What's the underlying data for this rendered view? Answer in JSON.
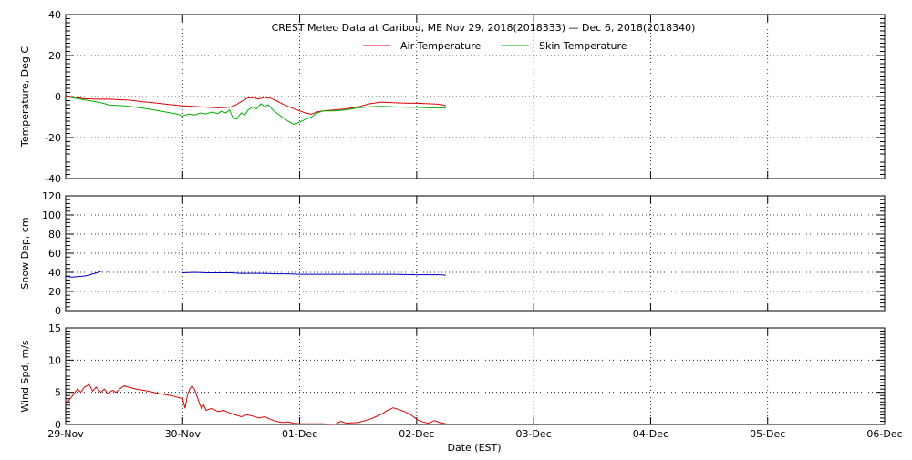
{
  "chart_data": [
    {
      "type": "line",
      "title": "CREST Meteo Data at Caribou, ME    Nov 29, 2018(2018333) — Dec  6, 2018(2018340)",
      "ylabel": "Temperature, Deg C",
      "ylim": [
        -40,
        40
      ],
      "yticks": [
        -40,
        -20,
        0,
        20,
        40
      ],
      "xlim": [
        0,
        7
      ],
      "grid": true,
      "legend_position": "top",
      "series": [
        {
          "name": "Air Temperature",
          "color": "#e00000",
          "points": [
            [
              0,
              0.5
            ],
            [
              0.08,
              -0.3
            ],
            [
              0.15,
              -1.0
            ],
            [
              0.25,
              -1.3
            ],
            [
              0.35,
              -1.2
            ],
            [
              0.45,
              -1.5
            ],
            [
              0.55,
              -1.8
            ],
            [
              0.65,
              -2.5
            ],
            [
              0.75,
              -3.0
            ],
            [
              0.9,
              -4.0
            ],
            [
              1.0,
              -4.5
            ],
            [
              1.15,
              -5.0
            ],
            [
              1.3,
              -5.5
            ],
            [
              1.4,
              -5.2
            ],
            [
              1.45,
              -4.2
            ],
            [
              1.5,
              -2.5
            ],
            [
              1.55,
              -0.8
            ],
            [
              1.6,
              -0.5
            ],
            [
              1.65,
              -1.2
            ],
            [
              1.7,
              -0.4
            ],
            [
              1.75,
              -0.8
            ],
            [
              1.8,
              -2.0
            ],
            [
              1.85,
              -3.5
            ],
            [
              1.9,
              -4.8
            ],
            [
              2.0,
              -7.0
            ],
            [
              2.05,
              -8.0
            ],
            [
              2.1,
              -8.6
            ],
            [
              2.15,
              -7.5
            ],
            [
              2.2,
              -7.0
            ],
            [
              2.3,
              -6.5
            ],
            [
              2.4,
              -6.0
            ],
            [
              2.5,
              -5.0
            ],
            [
              2.6,
              -3.5
            ],
            [
              2.7,
              -2.7
            ],
            [
              2.8,
              -3.0
            ],
            [
              2.9,
              -3.2
            ],
            [
              3.0,
              -3.3
            ],
            [
              3.1,
              -3.5
            ],
            [
              3.2,
              -3.8
            ],
            [
              3.25,
              -4.5
            ]
          ]
        },
        {
          "name": "Skin Temperature",
          "color": "#00b000",
          "points": [
            [
              0,
              0.0
            ],
            [
              0.1,
              -1.0
            ],
            [
              0.2,
              -2.0
            ],
            [
              0.3,
              -3.0
            ],
            [
              0.38,
              -4.2
            ],
            [
              0.5,
              -4.5
            ],
            [
              0.6,
              -5.2
            ],
            [
              0.7,
              -6.0
            ],
            [
              0.8,
              -7.0
            ],
            [
              0.9,
              -8.0
            ],
            [
              0.95,
              -8.5
            ],
            [
              1.0,
              -9.5
            ],
            [
              1.05,
              -8.5
            ],
            [
              1.1,
              -9.0
            ],
            [
              1.15,
              -8.0
            ],
            [
              1.2,
              -8.5
            ],
            [
              1.25,
              -7.5
            ],
            [
              1.3,
              -8.3
            ],
            [
              1.33,
              -7.2
            ],
            [
              1.37,
              -8.0
            ],
            [
              1.4,
              -6.5
            ],
            [
              1.43,
              -10.5
            ],
            [
              1.46,
              -11.0
            ],
            [
              1.5,
              -8.0
            ],
            [
              1.53,
              -9.0
            ],
            [
              1.56,
              -6.5
            ],
            [
              1.6,
              -5.0
            ],
            [
              1.63,
              -6.0
            ],
            [
              1.67,
              -3.5
            ],
            [
              1.7,
              -5.0
            ],
            [
              1.73,
              -4.0
            ],
            [
              1.78,
              -7.0
            ],
            [
              1.85,
              -10.0
            ],
            [
              1.9,
              -12.0
            ],
            [
              1.95,
              -13.5
            ],
            [
              2.0,
              -12.5
            ],
            [
              2.05,
              -11.0
            ],
            [
              2.1,
              -10.0
            ],
            [
              2.15,
              -8.0
            ],
            [
              2.2,
              -7.0
            ],
            [
              2.3,
              -7.0
            ],
            [
              2.4,
              -6.5
            ],
            [
              2.5,
              -5.5
            ],
            [
              2.6,
              -5.0
            ],
            [
              2.7,
              -4.8
            ],
            [
              2.8,
              -5.0
            ],
            [
              2.9,
              -5.2
            ],
            [
              3.0,
              -5.3
            ],
            [
              3.1,
              -5.5
            ],
            [
              3.2,
              -5.5
            ],
            [
              3.25,
              -5.7
            ]
          ]
        }
      ]
    },
    {
      "type": "line",
      "ylabel": "Snow Dep, cm",
      "ylim": [
        0,
        120
      ],
      "yticks": [
        0,
        20,
        40,
        60,
        80,
        100,
        120
      ],
      "xlim": [
        0,
        7
      ],
      "grid": true,
      "series": [
        {
          "color": "#0000c0",
          "segments": [
            [
              [
                0,
                36
              ],
              [
                0.05,
                35
              ],
              [
                0.1,
                35.5
              ],
              [
                0.15,
                36
              ],
              [
                0.2,
                37
              ],
              [
                0.22,
                38
              ],
              [
                0.25,
                39
              ],
              [
                0.28,
                40
              ],
              [
                0.3,
                41
              ],
              [
                0.33,
                41.5
              ],
              [
                0.37,
                41
              ]
            ],
            [
              [
                1.0,
                39.5
              ],
              [
                1.1,
                40
              ],
              [
                1.2,
                39.5
              ],
              [
                1.3,
                39.5
              ],
              [
                1.4,
                39.5
              ],
              [
                1.5,
                39
              ],
              [
                1.6,
                39
              ],
              [
                1.7,
                39
              ],
              [
                1.8,
                38.5
              ],
              [
                1.9,
                38.5
              ],
              [
                2.0,
                38
              ],
              [
                2.2,
                38
              ],
              [
                2.4,
                38
              ],
              [
                2.6,
                38
              ],
              [
                2.8,
                38
              ],
              [
                3.0,
                37.5
              ],
              [
                3.1,
                37.5
              ],
              [
                3.2,
                37.5
              ],
              [
                3.25,
                37
              ]
            ]
          ]
        }
      ]
    },
    {
      "type": "line",
      "ylabel": "Wind Spd, m/s",
      "ylim": [
        0,
        15
      ],
      "yticks": [
        0,
        5,
        10,
        15
      ],
      "xlim": [
        0,
        7
      ],
      "grid": true,
      "series": [
        {
          "color": "#e00000",
          "points": [
            [
              0,
              3.0
            ],
            [
              0.03,
              3.8
            ],
            [
              0.06,
              4.5
            ],
            [
              0.1,
              5.5
            ],
            [
              0.13,
              5.0
            ],
            [
              0.16,
              5.8
            ],
            [
              0.2,
              6.2
            ],
            [
              0.23,
              5.2
            ],
            [
              0.26,
              5.8
            ],
            [
              0.3,
              5.0
            ],
            [
              0.33,
              5.5
            ],
            [
              0.36,
              4.8
            ],
            [
              0.4,
              5.3
            ],
            [
              0.43,
              5.0
            ],
            [
              0.46,
              5.5
            ],
            [
              0.5,
              6.0
            ],
            [
              0.6,
              5.5
            ],
            [
              0.7,
              5.2
            ],
            [
              0.8,
              4.8
            ],
            [
              0.9,
              4.5
            ],
            [
              1.0,
              4.0
            ],
            [
              1.02,
              2.5
            ],
            [
              1.04,
              4.5
            ],
            [
              1.06,
              5.5
            ],
            [
              1.08,
              6.0
            ],
            [
              1.1,
              5.5
            ],
            [
              1.12,
              4.5
            ],
            [
              1.14,
              3.5
            ],
            [
              1.16,
              2.5
            ],
            [
              1.18,
              3.0
            ],
            [
              1.2,
              2.2
            ],
            [
              1.25,
              2.5
            ],
            [
              1.3,
              2.0
            ],
            [
              1.35,
              2.2
            ],
            [
              1.4,
              1.8
            ],
            [
              1.45,
              1.5
            ],
            [
              1.5,
              1.2
            ],
            [
              1.55,
              1.5
            ],
            [
              1.6,
              1.3
            ],
            [
              1.65,
              1.0
            ],
            [
              1.7,
              1.2
            ],
            [
              1.75,
              0.8
            ],
            [
              1.8,
              0.5
            ],
            [
              1.85,
              0.3
            ],
            [
              1.9,
              0.4
            ],
            [
              1.95,
              0.2
            ],
            [
              2.0,
              0.1
            ],
            [
              2.1,
              0.1
            ],
            [
              2.2,
              0.1
            ],
            [
              2.3,
              0.0
            ],
            [
              2.35,
              0.5
            ],
            [
              2.4,
              0.2
            ],
            [
              2.5,
              0.3
            ],
            [
              2.6,
              0.8
            ],
            [
              2.65,
              1.2
            ],
            [
              2.7,
              1.6
            ],
            [
              2.75,
              2.2
            ],
            [
              2.8,
              2.6
            ],
            [
              2.85,
              2.3
            ],
            [
              2.9,
              2.0
            ],
            [
              2.95,
              1.5
            ],
            [
              3.0,
              0.8
            ],
            [
              3.05,
              0.4
            ],
            [
              3.1,
              0.2
            ],
            [
              3.15,
              0.6
            ],
            [
              3.2,
              0.3
            ],
            [
              3.25,
              0.1
            ]
          ]
        }
      ]
    }
  ],
  "xaxis": {
    "label": "Date (EST)",
    "ticks": [
      "29-Nov",
      "30-Nov",
      "01-Dec",
      "02-Dec",
      "03-Dec",
      "04-Dec",
      "05-Dec",
      "06-Dec"
    ]
  }
}
